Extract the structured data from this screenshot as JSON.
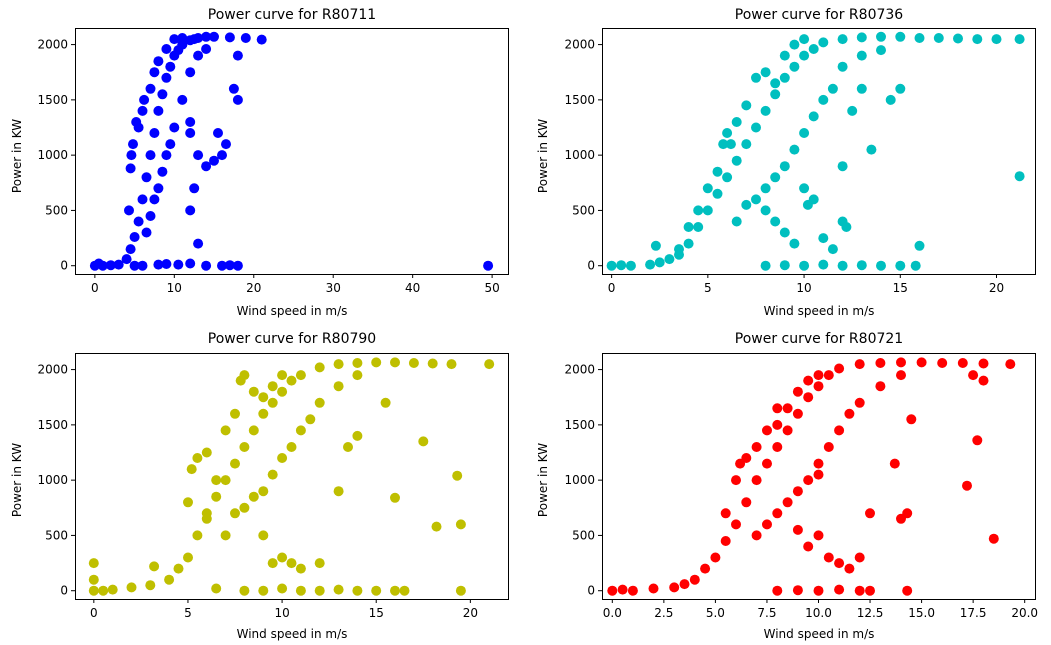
{
  "chart_data": [
    {
      "type": "scatter",
      "title": "Power curve for R80711",
      "xlabel": "Wind speed in m/s",
      "ylabel": "Power in KW",
      "color": "#0000ff",
      "xlim": [
        -2.5,
        52
      ],
      "ylim": [
        -75,
        2150
      ],
      "xticks": [
        0,
        10,
        20,
        30,
        40,
        50
      ],
      "xtick_labels": [
        "0",
        "10",
        "20",
        "30",
        "40",
        "50"
      ],
      "yticks": [
        0,
        500,
        1000,
        1500,
        2000
      ],
      "ytick_labels": [
        "0",
        "500",
        "1000",
        "1500",
        "2000"
      ],
      "points": [
        [
          0,
          0
        ],
        [
          0.5,
          20
        ],
        [
          1,
          0
        ],
        [
          2,
          5
        ],
        [
          3,
          10
        ],
        [
          4,
          60
        ],
        [
          4.5,
          150
        ],
        [
          5,
          260
        ],
        [
          5.5,
          400
        ],
        [
          6,
          600
        ],
        [
          6.5,
          800
        ],
        [
          7,
          1000
        ],
        [
          7.5,
          1200
        ],
        [
          8,
          1400
        ],
        [
          8.5,
          1550
        ],
        [
          9,
          1700
        ],
        [
          9.5,
          1800
        ],
        [
          10,
          1900
        ],
        [
          10.5,
          1950
        ],
        [
          11,
          2000
        ],
        [
          12,
          2040
        ],
        [
          13,
          2060
        ],
        [
          14,
          2070
        ],
        [
          15,
          2070
        ],
        [
          17,
          2065
        ],
        [
          19,
          2060
        ],
        [
          21,
          2045
        ],
        [
          4.3,
          500
        ],
        [
          4.5,
          880
        ],
        [
          4.6,
          1000
        ],
        [
          4.8,
          1100
        ],
        [
          5.2,
          1300
        ],
        [
          5.5,
          1250
        ],
        [
          6,
          1400
        ],
        [
          6.2,
          1500
        ],
        [
          7,
          1600
        ],
        [
          7.5,
          1750
        ],
        [
          8,
          1850
        ],
        [
          9,
          1960
        ],
        [
          10,
          2050
        ],
        [
          11,
          2060
        ],
        [
          6.5,
          300
        ],
        [
          7,
          450
        ],
        [
          7.5,
          600
        ],
        [
          8,
          700
        ],
        [
          8.5,
          850
        ],
        [
          9,
          1000
        ],
        [
          9.5,
          1100
        ],
        [
          10,
          1250
        ],
        [
          11,
          1500
        ],
        [
          12,
          1750
        ],
        [
          13,
          1900
        ],
        [
          14,
          1960
        ],
        [
          10.5,
          10
        ],
        [
          12,
          20
        ],
        [
          14,
          0
        ],
        [
          16,
          0
        ],
        [
          17,
          5
        ],
        [
          18,
          0
        ],
        [
          9,
          15
        ],
        [
          8,
          10
        ],
        [
          6,
          0
        ],
        [
          5,
          0
        ],
        [
          12,
          500
        ],
        [
          13,
          200
        ],
        [
          12.5,
          700
        ],
        [
          14,
          900
        ],
        [
          15,
          950
        ],
        [
          16,
          1000
        ],
        [
          15.5,
          1200
        ],
        [
          16.5,
          1100
        ],
        [
          18,
          1500
        ],
        [
          17.5,
          1600
        ],
        [
          18,
          1900
        ],
        [
          13,
          1000
        ],
        [
          12,
          1200
        ],
        [
          12,
          1300
        ],
        [
          11,
          2000
        ],
        [
          12.5,
          2050
        ],
        [
          49.5,
          0
        ]
      ]
    },
    {
      "type": "scatter",
      "title": "Power curve for R80736",
      "xlabel": "Wind speed in m/s",
      "ylabel": "Power in KW",
      "color": "#00bfbf",
      "xlim": [
        -0.5,
        22
      ],
      "ylim": [
        -75,
        2150
      ],
      "xticks": [
        0,
        5,
        10,
        15,
        20
      ],
      "xtick_labels": [
        "0",
        "5",
        "10",
        "15",
        "20"
      ],
      "yticks": [
        0,
        500,
        1000,
        1500,
        2000
      ],
      "ytick_labels": [
        "0",
        "500",
        "1000",
        "1500",
        "2000"
      ],
      "points": [
        [
          0,
          0
        ],
        [
          0.5,
          5
        ],
        [
          1,
          0
        ],
        [
          2,
          10
        ],
        [
          2.5,
          30
        ],
        [
          3,
          60
        ],
        [
          3.5,
          100
        ],
        [
          4,
          200
        ],
        [
          4.5,
          350
        ],
        [
          5,
          500
        ],
        [
          5.5,
          650
        ],
        [
          6,
          800
        ],
        [
          6.5,
          950
        ],
        [
          7,
          1100
        ],
        [
          7.5,
          1250
        ],
        [
          8,
          1400
        ],
        [
          8.5,
          1550
        ],
        [
          9,
          1700
        ],
        [
          9.5,
          1800
        ],
        [
          10,
          1900
        ],
        [
          10.5,
          1960
        ],
        [
          11,
          2020
        ],
        [
          12,
          2050
        ],
        [
          13,
          2065
        ],
        [
          14,
          2070
        ],
        [
          15,
          2070
        ],
        [
          16,
          2060
        ],
        [
          17,
          2060
        ],
        [
          18,
          2055
        ],
        [
          19,
          2050
        ],
        [
          20,
          2050
        ],
        [
          21.2,
          2050
        ],
        [
          3.5,
          150
        ],
        [
          4,
          350
        ],
        [
          4.5,
          500
        ],
        [
          5,
          700
        ],
        [
          5.5,
          850
        ],
        [
          5.8,
          1100
        ],
        [
          6,
          1200
        ],
        [
          6.2,
          1100
        ],
        [
          6.5,
          1300
        ],
        [
          7,
          1450
        ],
        [
          7.5,
          1700
        ],
        [
          8,
          1750
        ],
        [
          8.5,
          1650
        ],
        [
          9,
          1900
        ],
        [
          9.5,
          2000
        ],
        [
          10,
          2050
        ],
        [
          6.5,
          400
        ],
        [
          7,
          550
        ],
        [
          7.5,
          600
        ],
        [
          8,
          700
        ],
        [
          8.5,
          800
        ],
        [
          9,
          900
        ],
        [
          9.5,
          1050
        ],
        [
          10,
          1200
        ],
        [
          10.5,
          1350
        ],
        [
          11,
          1500
        ],
        [
          11.5,
          1600
        ],
        [
          12,
          1800
        ],
        [
          13,
          1900
        ],
        [
          14,
          1950
        ],
        [
          8,
          0
        ],
        [
          9,
          5
        ],
        [
          10,
          0
        ],
        [
          11,
          10
        ],
        [
          12,
          0
        ],
        [
          13,
          5
        ],
        [
          14,
          0
        ],
        [
          15,
          0
        ],
        [
          15.8,
          0
        ],
        [
          8,
          500
        ],
        [
          8.5,
          400
        ],
        [
          9,
          300
        ],
        [
          9.5,
          200
        ],
        [
          10,
          700
        ],
        [
          10.2,
          550
        ],
        [
          10.5,
          600
        ],
        [
          11,
          250
        ],
        [
          11.5,
          150
        ],
        [
          12,
          400
        ],
        [
          12.2,
          350
        ],
        [
          12,
          900
        ],
        [
          13.5,
          1050
        ],
        [
          14.5,
          1500
        ],
        [
          15,
          1600
        ],
        [
          2.3,
          180
        ],
        [
          16,
          180
        ],
        [
          21.2,
          810
        ],
        [
          12.5,
          1400
        ],
        [
          13,
          1600
        ]
      ]
    },
    {
      "type": "scatter",
      "title": "Power curve for R80790",
      "xlabel": "Wind speed in m/s",
      "ylabel": "Power in KW",
      "color": "#bfbf00",
      "xlim": [
        -1,
        22
      ],
      "ylim": [
        -75,
        2150
      ],
      "xticks": [
        0,
        5,
        10,
        15,
        20
      ],
      "xtick_labels": [
        "0",
        "5",
        "10",
        "15",
        "20"
      ],
      "yticks": [
        0,
        500,
        1000,
        1500,
        2000
      ],
      "ytick_labels": [
        "0",
        "500",
        "1000",
        "1500",
        "2000"
      ],
      "points": [
        [
          0,
          0
        ],
        [
          0,
          250
        ],
        [
          0,
          100
        ],
        [
          0.5,
          0
        ],
        [
          1,
          10
        ],
        [
          2,
          30
        ],
        [
          3,
          50
        ],
        [
          3.2,
          220
        ],
        [
          4,
          100
        ],
        [
          4.5,
          200
        ],
        [
          5,
          300
        ],
        [
          5.5,
          500
        ],
        [
          6,
          700
        ],
        [
          6.5,
          850
        ],
        [
          7,
          1000
        ],
        [
          7.5,
          1150
        ],
        [
          8,
          1300
        ],
        [
          8.5,
          1450
        ],
        [
          9,
          1600
        ],
        [
          9.5,
          1700
        ],
        [
          10,
          1800
        ],
        [
          10.5,
          1900
        ],
        [
          11,
          1950
        ],
        [
          12,
          2020
        ],
        [
          13,
          2050
        ],
        [
          14,
          2060
        ],
        [
          15,
          2065
        ],
        [
          16,
          2065
        ],
        [
          17,
          2060
        ],
        [
          18,
          2055
        ],
        [
          19,
          2050
        ],
        [
          21,
          2050
        ],
        [
          5,
          800
        ],
        [
          5.2,
          1100
        ],
        [
          5.5,
          1200
        ],
        [
          6,
          1250
        ],
        [
          6,
          650
        ],
        [
          6.5,
          1000
        ],
        [
          7,
          1450
        ],
        [
          7.5,
          1600
        ],
        [
          7.8,
          1900
        ],
        [
          8,
          1950
        ],
        [
          8.5,
          1800
        ],
        [
          9,
          1750
        ],
        [
          9.5,
          1850
        ],
        [
          10,
          1950
        ],
        [
          7,
          500
        ],
        [
          7.5,
          700
        ],
        [
          8,
          750
        ],
        [
          8.5,
          850
        ],
        [
          9,
          900
        ],
        [
          9.5,
          1050
        ],
        [
          10,
          1200
        ],
        [
          10.5,
          1300
        ],
        [
          11,
          1450
        ],
        [
          11.5,
          1550
        ],
        [
          12,
          1700
        ],
        [
          13,
          1850
        ],
        [
          14,
          1950
        ],
        [
          6.5,
          20
        ],
        [
          8,
          0
        ],
        [
          9,
          0
        ],
        [
          10,
          20
        ],
        [
          11,
          0
        ],
        [
          12,
          0
        ],
        [
          13,
          10
        ],
        [
          14,
          0
        ],
        [
          15,
          0
        ],
        [
          16,
          0
        ],
        [
          16.5,
          0
        ],
        [
          9,
          500
        ],
        [
          9.5,
          250
        ],
        [
          10,
          300
        ],
        [
          10.5,
          250
        ],
        [
          11,
          200
        ],
        [
          12,
          250
        ],
        [
          13,
          900
        ],
        [
          13.5,
          1300
        ],
        [
          14,
          1400
        ],
        [
          15.5,
          1700
        ],
        [
          16,
          840
        ],
        [
          17.5,
          1350
        ],
        [
          18.2,
          580
        ],
        [
          19.3,
          1040
        ],
        [
          19.5,
          600
        ],
        [
          19.5,
          0
        ]
      ]
    },
    {
      "type": "scatter",
      "title": "Power curve for R80721",
      "xlabel": "Wind speed in m/s",
      "ylabel": "Power in KW",
      "color": "#ff0000",
      "xlim": [
        -0.5,
        20.5
      ],
      "ylim": [
        -75,
        2150
      ],
      "xticks": [
        0,
        2.5,
        5,
        7.5,
        10,
        12.5,
        15,
        17.5,
        20
      ],
      "xtick_labels": [
        "0.0",
        "2.5",
        "5.0",
        "7.5",
        "10.0",
        "12.5",
        "15.0",
        "17.5",
        "20.0"
      ],
      "yticks": [
        0,
        500,
        1000,
        1500,
        2000
      ],
      "ytick_labels": [
        "0",
        "500",
        "1000",
        "1500",
        "2000"
      ],
      "points": [
        [
          0,
          0
        ],
        [
          0.5,
          10
        ],
        [
          1,
          0
        ],
        [
          2,
          20
        ],
        [
          3,
          30
        ],
        [
          3.5,
          60
        ],
        [
          4,
          100
        ],
        [
          4.5,
          200
        ],
        [
          5,
          300
        ],
        [
          5.5,
          450
        ],
        [
          6,
          600
        ],
        [
          6.5,
          800
        ],
        [
          7,
          1000
        ],
        [
          7.5,
          1150
        ],
        [
          8,
          1300
        ],
        [
          8.5,
          1450
        ],
        [
          9,
          1600
        ],
        [
          9.5,
          1750
        ],
        [
          10,
          1850
        ],
        [
          10.5,
          1950
        ],
        [
          11,
          2010
        ],
        [
          12,
          2050
        ],
        [
          13,
          2060
        ],
        [
          14,
          2065
        ],
        [
          15,
          2065
        ],
        [
          16,
          2060
        ],
        [
          17,
          2060
        ],
        [
          18,
          2055
        ],
        [
          19.3,
          2050
        ],
        [
          5.5,
          700
        ],
        [
          6,
          1000
        ],
        [
          6.2,
          1150
        ],
        [
          6.5,
          1200
        ],
        [
          7,
          1300
        ],
        [
          7.5,
          1450
        ],
        [
          8,
          1500
        ],
        [
          8.5,
          1650
        ],
        [
          9,
          1800
        ],
        [
          9.5,
          1900
        ],
        [
          10,
          1950
        ],
        [
          7,
          500
        ],
        [
          7.5,
          600
        ],
        [
          8,
          700
        ],
        [
          8.5,
          800
        ],
        [
          9,
          900
        ],
        [
          9.5,
          1000
        ],
        [
          10,
          1150
        ],
        [
          10.5,
          1300
        ],
        [
          11,
          1450
        ],
        [
          11.5,
          1600
        ],
        [
          12,
          1700
        ],
        [
          13,
          1850
        ],
        [
          14,
          1950
        ],
        [
          8,
          0
        ],
        [
          9,
          5
        ],
        [
          10,
          0
        ],
        [
          11,
          10
        ],
        [
          12,
          0
        ],
        [
          12.5,
          0
        ],
        [
          8,
          1650
        ],
        [
          9,
          550
        ],
        [
          9.5,
          400
        ],
        [
          10,
          500
        ],
        [
          10,
          1050
        ],
        [
          10.5,
          300
        ],
        [
          11,
          250
        ],
        [
          11.5,
          200
        ],
        [
          12,
          300
        ],
        [
          12.5,
          700
        ],
        [
          13.7,
          1150
        ],
        [
          14,
          650
        ],
        [
          14.3,
          700
        ],
        [
          14.5,
          1550
        ],
        [
          14.3,
          0
        ],
        [
          17.2,
          950
        ],
        [
          17.7,
          1360
        ],
        [
          18.5,
          470
        ],
        [
          17.5,
          1950
        ],
        [
          18,
          1900
        ]
      ]
    }
  ]
}
